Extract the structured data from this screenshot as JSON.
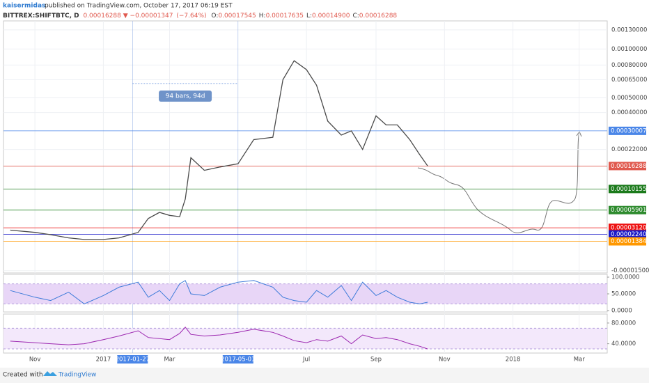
{
  "header": {
    "author": "kaisermidas",
    "published": "published on TradingView.com, October 17, 2017 06:19 EST"
  },
  "chart_data": {
    "type": "line",
    "symbol": "BITTREX:SHIFTBTC, D",
    "close": {
      "value": 0.00016288,
      "label": "0.00016288"
    },
    "change": {
      "value": -1.347e-05,
      "label": "−0.00001347"
    },
    "change_pct": {
      "value": -7.64,
      "label": "(−7.64%)"
    },
    "quote": [
      {
        "name": "O:",
        "value": 0.00017545,
        "label": "0.00017545"
      },
      {
        "name": "H:",
        "value": 0.00017635,
        "label": "0.00017635"
      },
      {
        "name": "L:",
        "value": 0.000149,
        "label": "0.00014900"
      },
      {
        "name": "C:",
        "value": 0.00016288,
        "label": "0.00016288"
      }
    ],
    "color": "#4a4a4a",
    "x": [
      "2016-10-10",
      "2016-11-01",
      "2016-11-15",
      "2016-12-01",
      "2016-12-15",
      "2017-01-01",
      "2017-01-15",
      "2017-02-01",
      "2017-02-10",
      "2017-02-20",
      "2017-03-01",
      "2017-03-10",
      "2017-03-15",
      "2017-03-20",
      "2017-04-01",
      "2017-04-15",
      "2017-05-01",
      "2017-05-15",
      "2017-06-01",
      "2017-06-10",
      "2017-06-20",
      "2017-07-01",
      "2017-07-10",
      "2017-07-20",
      "2017-08-01",
      "2017-08-10",
      "2017-08-20",
      "2017-09-01",
      "2017-09-10",
      "2017-09-20",
      "2017-10-01",
      "2017-10-10",
      "2017-10-17"
    ],
    "values": [
      2.8e-05,
      2.5e-05,
      2.2e-05,
      1.8e-05,
      1.6e-05,
      1.6e-05,
      1.8e-05,
      2.5e-05,
      4.5e-05,
      5.5e-05,
      5e-05,
      4.8e-05,
      8e-05,
      0.00019,
      0.00015,
      0.00016,
      0.00017,
      0.00026,
      0.00027,
      0.00065,
      0.00085,
      0.00075,
      0.0006,
      0.00035,
      0.00028,
      0.0003,
      0.00022,
      0.00038,
      0.00033,
      0.00033,
      0.00026,
      0.0002,
      0.00016288
    ],
    "xlim": [
      "2016-10-04",
      "2018-03-26"
    ],
    "xticks": [
      {
        "value": "2016-11-01",
        "label": "Nov"
      },
      {
        "value": "2017-01-01",
        "label": "2017"
      },
      {
        "value": "2017-03-01",
        "label": "Mar"
      },
      {
        "value": "2017-07-01",
        "label": "Jul"
      },
      {
        "value": "2017-09-01",
        "label": "Sep"
      },
      {
        "value": "2017-11-01",
        "label": "Nov"
      },
      {
        "value": "2018-01-01",
        "label": "2018"
      },
      {
        "value": "2018-03-01",
        "label": "Mar"
      }
    ],
    "ylim": [
      -2e-05,
      0.0014
    ],
    "log_scale": true,
    "yticks": [
      {
        "value": 0.0013,
        "label": "0.00130000"
      },
      {
        "value": 0.001,
        "label": "0.00100000"
      },
      {
        "value": 0.0008,
        "label": "0.00080000"
      },
      {
        "value": 0.00065,
        "label": "0.00065000"
      },
      {
        "value": 0.0005,
        "label": "0.00050000"
      },
      {
        "value": 0.0004,
        "label": "0.00040000"
      },
      {
        "value": 0.00022,
        "label": "0.00022000"
      },
      {
        "value": -1.5e-05,
        "label": "-0.00001500"
      }
    ],
    "levels": [
      {
        "value": 0.00030007,
        "label": "0.00030007",
        "color": "#4a86e8"
      },
      {
        "value": 0.00016288,
        "label": "0.00016288",
        "color": "#e0594e"
      },
      {
        "value": 0.00010155,
        "label": "0.00010155",
        "color": "#1b7a1b"
      },
      {
        "value": 5.901e-05,
        "label": "0.00005901",
        "color": "#2e8b2e"
      },
      {
        "value": 3.12e-05,
        "label": "0.00003120",
        "color": "#ee1111"
      },
      {
        "value": 2.24e-05,
        "label": "0.00002240",
        "color": "#1a1ac8"
      },
      {
        "value": 1.384e-05,
        "label": "0.00001384",
        "color": "#ff9800"
      }
    ],
    "grid": true,
    "measure": {
      "start": "2017-01-27",
      "end": "2017-05-01",
      "label": "94 bars, 94d"
    },
    "stoch": {
      "color": "#3d7bd9",
      "ylim": [
        0,
        100
      ],
      "band": [
        20,
        80
      ],
      "yticks": [
        {
          "value": 100,
          "label": "100.0000"
        },
        {
          "value": 50,
          "label": "50.0000"
        },
        {
          "value": 0,
          "label": "0.0000"
        }
      ],
      "values": [
        60,
        40,
        30,
        55,
        20,
        45,
        70,
        85,
        40,
        60,
        30,
        80,
        90,
        50,
        45,
        70,
        85,
        90,
        70,
        40,
        30,
        25,
        60,
        40,
        75,
        30,
        85,
        45,
        60,
        40,
        25,
        20,
        25
      ]
    },
    "rsi": {
      "color": "#9c27b0",
      "ylim": [
        22,
        96
      ],
      "band": [
        30,
        70
      ],
      "yticks": [
        {
          "value": 80,
          "label": "80.0000"
        },
        {
          "value": 40,
          "label": "40.0000"
        }
      ],
      "values": [
        45,
        42,
        40,
        38,
        40,
        48,
        55,
        65,
        52,
        50,
        48,
        60,
        72,
        58,
        55,
        57,
        62,
        68,
        62,
        55,
        46,
        42,
        48,
        45,
        55,
        40,
        57,
        50,
        52,
        48,
        40,
        35,
        30
      ]
    }
  },
  "footer": {
    "created": "Created with",
    "brand": "TradingView"
  }
}
